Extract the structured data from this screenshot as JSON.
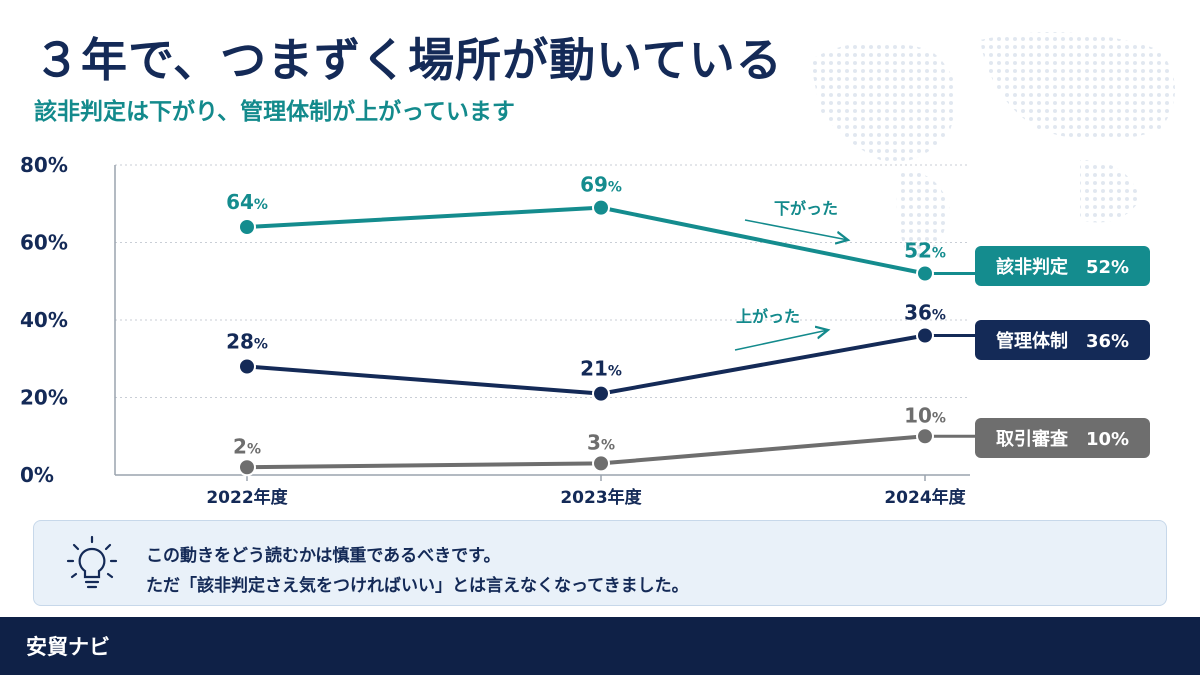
{
  "title": "３年で、つまずく場所が動いている",
  "subtitle": "該非判定は下がり、管理体制が上がっています",
  "chart_data": {
    "type": "line",
    "categories": [
      "2022年度",
      "2023年度",
      "2024年度"
    ],
    "ylim": [
      0,
      80
    ],
    "yticks": [
      "0%",
      "20%",
      "40%",
      "60%",
      "80%"
    ],
    "grid": true,
    "series": [
      {
        "name": "該非判定",
        "values": [
          64,
          69,
          52
        ],
        "labels": [
          "64%",
          "69%",
          "52%"
        ],
        "legend": "該非判定　52%",
        "color": "#148c8e"
      },
      {
        "name": "管理体制",
        "values": [
          28,
          21,
          36
        ],
        "labels": [
          "28%",
          "21%",
          "36%"
        ],
        "legend": "管理体制　36%",
        "color": "#142a57"
      },
      {
        "name": "取引審査",
        "values": [
          2,
          3,
          10
        ],
        "labels": [
          "2%",
          "3%",
          "10%"
        ],
        "legend": "取引審査　10%",
        "color": "#6e6e6e"
      }
    ],
    "annotations": [
      {
        "text": "下がった",
        "series": "該非判定"
      },
      {
        "text": "上がった",
        "series": "管理体制"
      }
    ]
  },
  "note": {
    "line1": "この動きをどう読むかは慎重であるべきです。",
    "line2": "ただ「該非判定さえ気をつければいい」とは言えなくなってきました。",
    "icon": "lightbulb-icon"
  },
  "footer": {
    "brand": "安貿ナビ"
  }
}
